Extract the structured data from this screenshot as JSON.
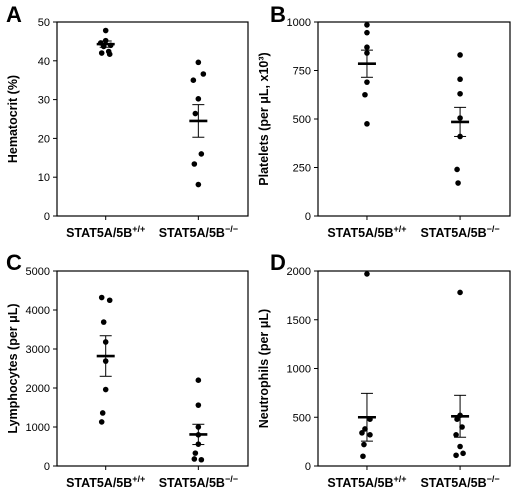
{
  "chart_data": [
    {
      "type": "scatter",
      "panel": "A",
      "ylabel": "Hematocrit (%)",
      "ylim": [
        0,
        50
      ],
      "yticks": [
        0,
        10,
        20,
        30,
        40,
        50
      ],
      "categories": [
        {
          "base": "STAT5A/5B",
          "sup": "+/+"
        },
        {
          "base": "STAT5A/5B",
          "sup": "−/−"
        }
      ],
      "groups": [
        {
          "values": [
            47.8,
            45.2,
            44.6,
            44.0,
            43.7,
            42.4,
            42.0,
            41.7
          ],
          "mean": 44.3,
          "sem": 0.8
        },
        {
          "values": [
            39.6,
            36.6,
            35.0,
            30.2,
            26.4,
            16.0,
            13.4,
            8.1
          ],
          "mean": 24.5,
          "sem": 4.2
        }
      ]
    },
    {
      "type": "scatter",
      "panel": "B",
      "ylabel": "Platelets (per μL, x10³)",
      "ylim": [
        0,
        1000
      ],
      "yticks": [
        0,
        250,
        500,
        750,
        1000
      ],
      "categories": [
        {
          "base": "STAT5A/5B",
          "sup": "+/+"
        },
        {
          "base": "STAT5A/5B",
          "sup": "−/−"
        }
      ],
      "groups": [
        {
          "values": [
            985,
            945,
            870,
            840,
            690,
            625,
            475
          ],
          "mean": 785,
          "sem": 70
        },
        {
          "values": [
            830,
            705,
            630,
            505,
            410,
            240,
            170
          ],
          "mean": 485,
          "sem": 75
        }
      ]
    },
    {
      "type": "scatter",
      "panel": "C",
      "ylabel": "Lymphocytes (per μL)",
      "ylim": [
        0,
        5000
      ],
      "yticks": [
        0,
        1000,
        2000,
        3000,
        4000,
        5000
      ],
      "categories": [
        {
          "base": "STAT5A/5B",
          "sup": "+/+"
        },
        {
          "base": "STAT5A/5B",
          "sup": "−/−"
        }
      ],
      "groups": [
        {
          "values": [
            4320,
            4250,
            3690,
            3180,
            2690,
            1960,
            1360,
            1130
          ],
          "mean": 2820,
          "sem": 520
        },
        {
          "values": [
            2200,
            1560,
            1000,
            800,
            560,
            330,
            180,
            160
          ],
          "mean": 810,
          "sem": 260
        }
      ]
    },
    {
      "type": "scatter",
      "panel": "D",
      "ylabel": "Neutrophils (per μL)",
      "ylim": [
        0,
        2000
      ],
      "yticks": [
        0,
        500,
        1000,
        1500,
        2000
      ],
      "categories": [
        {
          "base": "STAT5A/5B",
          "sup": "+/+"
        },
        {
          "base": "STAT5A/5B",
          "sup": "−/−"
        }
      ],
      "groups": [
        {
          "values": [
            1970,
            480,
            380,
            340,
            320,
            220,
            100
          ],
          "mean": 500,
          "sem": 245
        },
        {
          "values": [
            1780,
            520,
            480,
            400,
            320,
            200,
            130,
            110
          ],
          "mean": 510,
          "sem": 215
        }
      ]
    }
  ]
}
